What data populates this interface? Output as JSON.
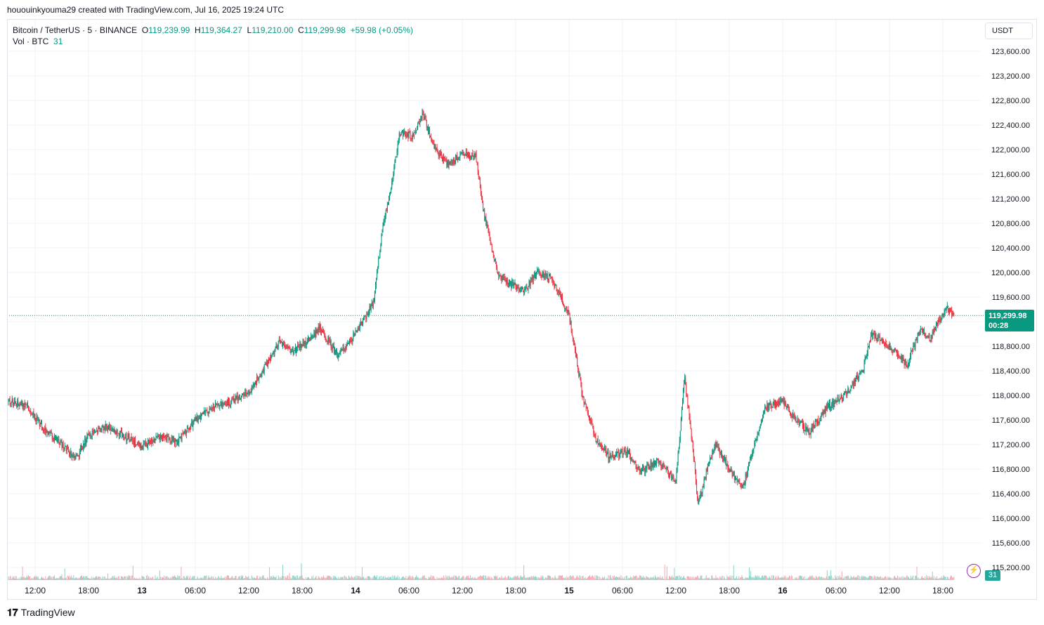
{
  "header": {
    "created_by": "hououinkyouma29 created with TradingView.com, Jul 16, 2025 19:24 UTC"
  },
  "legend": {
    "symbol": "Bitcoin / TetherUS · 5 · BINANCE",
    "open_label": "O",
    "open": "119,239.99",
    "high_label": "H",
    "high": "119,364.27",
    "low_label": "L",
    "low": "119,210.00",
    "close_label": "C",
    "close": "119,299.98",
    "change": "+59.98 (+0.05%)",
    "vol_label": "Vol · BTC",
    "vol_value": "31"
  },
  "currency_button": "USDT",
  "price_badge": {
    "price": "119,299.98",
    "countdown": "00:28"
  },
  "volume_badge": "31",
  "icons": {
    "alert": "lightning-icon",
    "logo": "tradingview-logo-icon"
  },
  "footer": {
    "brand": "TradingView"
  },
  "colors": {
    "up": "#089981",
    "down": "#f23645",
    "grid": "#f0f3fa",
    "badge": "#089981"
  },
  "chart_data": {
    "type": "candlestick",
    "title": "",
    "xlabel": "",
    "ylabel": "",
    "ylim": [
      115000,
      123800
    ],
    "y_ticks": [
      "123,600.00",
      "123,200.00",
      "122,800.00",
      "122,400.00",
      "122,000.00",
      "121,600.00",
      "121,200.00",
      "120,800.00",
      "120,400.00",
      "120,000.00",
      "119,600.00",
      "119,200.00",
      "118,800.00",
      "118,400.00",
      "118,000.00",
      "117,600.00",
      "117,200.00",
      "116,800.00",
      "116,400.00",
      "116,000.00",
      "115,600.00",
      "115,200.00"
    ],
    "x_ticks": [
      "12:00",
      "18:00",
      "13",
      "06:00",
      "12:00",
      "18:00",
      "14",
      "06:00",
      "12:00",
      "18:00",
      "15",
      "06:00",
      "12:00",
      "18:00",
      "16",
      "06:00",
      "12:00",
      "18:00"
    ],
    "current_price": 119299.98,
    "series": [
      {
        "name": "Bitcoin / TetherUS",
        "points": [
          [
            "Jul 12 09:00",
            117900
          ],
          [
            "Jul 12 11:00",
            117850
          ],
          [
            "Jul 12 13:00",
            117450
          ],
          [
            "Jul 12 15:00",
            117200
          ],
          [
            "Jul 12 16:30",
            116950
          ],
          [
            "Jul 12 18:00",
            117350
          ],
          [
            "Jul 12 20:00",
            117500
          ],
          [
            "Jul 12 22:00",
            117350
          ],
          [
            "Jul 13 00:00",
            117150
          ],
          [
            "Jul 13 02:00",
            117350
          ],
          [
            "Jul 13 04:00",
            117250
          ],
          [
            "Jul 13 06:00",
            117600
          ],
          [
            "Jul 13 08:00",
            117800
          ],
          [
            "Jul 13 10:00",
            117900
          ],
          [
            "Jul 13 12:00",
            118050
          ],
          [
            "Jul 13 14:00",
            118500
          ],
          [
            "Jul 13 15:30",
            118900
          ],
          [
            "Jul 13 17:00",
            118700
          ],
          [
            "Jul 13 19:00",
            118950
          ],
          [
            "Jul 13 20:00",
            119100
          ],
          [
            "Jul 13 22:00",
            118650
          ],
          [
            "Jul 14 00:00",
            119000
          ],
          [
            "Jul 14 02:00",
            119500
          ],
          [
            "Jul 14 03:00",
            120700
          ],
          [
            "Jul 14 04:00",
            121400
          ],
          [
            "Jul 14 05:00",
            122300
          ],
          [
            "Jul 14 06:30",
            122200
          ],
          [
            "Jul 14 07:30",
            122600
          ],
          [
            "Jul 14 09:00",
            122000
          ],
          [
            "Jul 14 10:30",
            121750
          ],
          [
            "Jul 14 12:00",
            121950
          ],
          [
            "Jul 14 13:30",
            121900
          ],
          [
            "Jul 14 14:30",
            120900
          ],
          [
            "Jul 14 16:00",
            119950
          ],
          [
            "Jul 14 17:30",
            119800
          ],
          [
            "Jul 14 19:00",
            119700
          ],
          [
            "Jul 14 20:30",
            120000
          ],
          [
            "Jul 14 22:00",
            119900
          ],
          [
            "Jul 15 00:00",
            119300
          ],
          [
            "Jul 15 01:30",
            118000
          ],
          [
            "Jul 15 03:00",
            117300
          ],
          [
            "Jul 15 04:30",
            117000
          ],
          [
            "Jul 15 06:30",
            117100
          ],
          [
            "Jul 15 08:00",
            116750
          ],
          [
            "Jul 15 10:00",
            116950
          ],
          [
            "Jul 15 12:00",
            116600
          ],
          [
            "Jul 15 13:00",
            118300
          ],
          [
            "Jul 15 14:00",
            117000
          ],
          [
            "Jul 15 14:30",
            116200
          ],
          [
            "Jul 15 15:30",
            116800
          ],
          [
            "Jul 15 16:30",
            117200
          ],
          [
            "Jul 15 18:00",
            116800
          ],
          [
            "Jul 15 19:30",
            116500
          ],
          [
            "Jul 15 21:00",
            117300
          ],
          [
            "Jul 15 22:00",
            117800
          ],
          [
            "Jul 16 00:00",
            117900
          ],
          [
            "Jul 16 01:30",
            117600
          ],
          [
            "Jul 16 03:00",
            117400
          ],
          [
            "Jul 16 05:00",
            117800
          ],
          [
            "Jul 16 07:00",
            118000
          ],
          [
            "Jul 16 09:00",
            118400
          ],
          [
            "Jul 16 10:00",
            119000
          ],
          [
            "Jul 16 12:00",
            118800
          ],
          [
            "Jul 16 14:00",
            118500
          ],
          [
            "Jul 16 15:30",
            119100
          ],
          [
            "Jul 16 16:30",
            118900
          ],
          [
            "Jul 16 17:30",
            119200
          ],
          [
            "Jul 16 18:30",
            119400
          ],
          [
            "Jul 16 19:20",
            119300
          ]
        ]
      }
    ]
  }
}
